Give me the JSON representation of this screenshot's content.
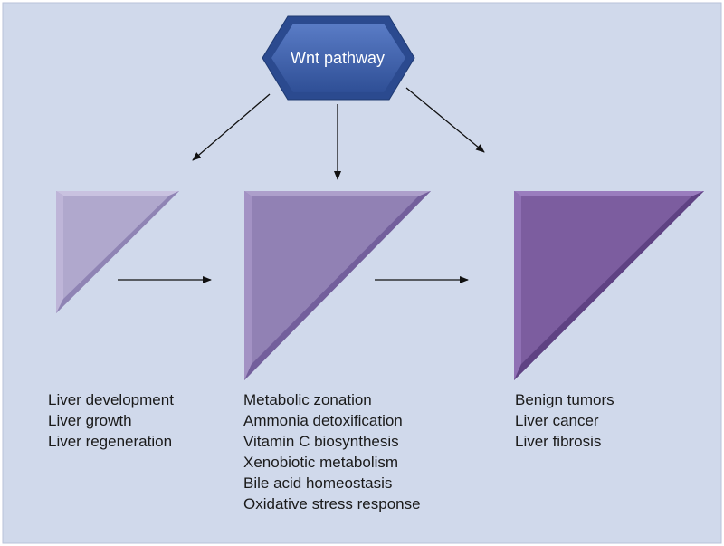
{
  "hub": {
    "label": "Wnt pathway"
  },
  "groups": [
    {
      "items": [
        "Liver development",
        "Liver growth",
        "Liver regeneration"
      ]
    },
    {
      "items": [
        "Metabolic zonation",
        "Ammonia detoxification",
        "Vitamin C biosynthesis",
        "Xenobiotic metabolism",
        "Bile acid homeostasis",
        "Oxidative stress response"
      ]
    },
    {
      "items": [
        "Benign tumors",
        "Liver cancer",
        "Liver fibrosis"
      ]
    }
  ],
  "colors": {
    "background": "#d0d9eb",
    "hub_fill": "#3b5aa5",
    "hub_edge": "#24407f",
    "triangle_light": "#b0a8cd",
    "triangle_medium": "#9181b4",
    "triangle_dark": "#7c5d9f",
    "arrow": "#111111"
  }
}
